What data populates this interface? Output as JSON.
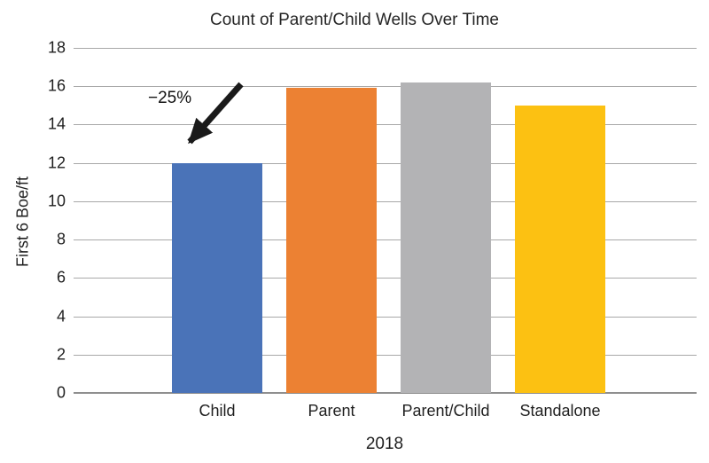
{
  "chart_data": {
    "type": "bar",
    "title": "Count of Parent/Child Wells Over Time",
    "categories": [
      "Child",
      "Parent",
      "Parent/Child",
      "Standalone"
    ],
    "values": [
      12,
      15.9,
      16.2,
      15.0
    ],
    "bar_colors": [
      "#4a73b8",
      "#ec8133",
      "#b3b3b5",
      "#fcc112"
    ],
    "xlabel": "2018",
    "ylabel": "First 6 Boe/ft",
    "ylim": [
      0,
      18
    ],
    "ytick_step": 2,
    "yticks": [
      0,
      2,
      4,
      6,
      8,
      10,
      12,
      14,
      16,
      18
    ],
    "grid": true,
    "legend": "none",
    "annotation": {
      "text": "−25%",
      "target_category": "Child"
    },
    "colors": {
      "gridline": "#a8a8a8",
      "axis_line": "#8f8f8f",
      "text": "#1f1f1f",
      "arrow": "#1a1a1a",
      "background": "#ffffff"
    }
  }
}
